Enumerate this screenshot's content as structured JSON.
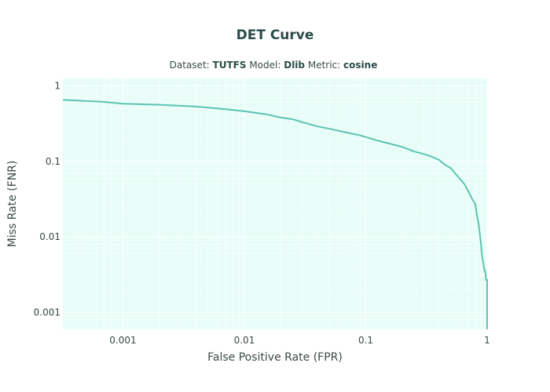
{
  "chart_data": {
    "type": "line",
    "title": "DET Curve",
    "subtitle": {
      "dataset_label": "Dataset:",
      "dataset": "TUTFS",
      "model_label": "Model:",
      "model": "Dlib",
      "metric_label": "Metric:",
      "metric": "cosine"
    },
    "xlabel": "False Positive Rate (FPR)",
    "ylabel": "Miss Rate (FNR)",
    "x_scale": "log",
    "y_scale": "log",
    "xlim": [
      0.00032,
      1
    ],
    "ylim": [
      0.0006,
      1.25
    ],
    "x_ticks": [
      {
        "value": 0.001,
        "label": "0.001"
      },
      {
        "value": 0.01,
        "label": "0.01"
      },
      {
        "value": 0.1,
        "label": "0.1"
      },
      {
        "value": 1,
        "label": "1"
      }
    ],
    "y_ticks": [
      {
        "value": 0.001,
        "label": "0.001"
      },
      {
        "value": 0.01,
        "label": "0.01"
      },
      {
        "value": 0.1,
        "label": "0.1"
      },
      {
        "value": 1,
        "label": "1"
      }
    ],
    "grid": true,
    "colors": {
      "line": "#5cc4b0",
      "plot_background": "#e8fdf8",
      "grid": "#ffffff",
      "title": "#2b4d48"
    },
    "series": [
      {
        "x": [
          0.00032,
          0.0007,
          0.001,
          0.002,
          0.004,
          0.007,
          0.01,
          0.015,
          0.02,
          0.025,
          0.03,
          0.04,
          0.05,
          0.07,
          0.09,
          0.11,
          0.13,
          0.16,
          0.2,
          0.25,
          0.3,
          0.35,
          0.4,
          0.45,
          0.5,
          0.55,
          0.6,
          0.65,
          0.7,
          0.75,
          0.8,
          0.82,
          0.85,
          0.87,
          0.89,
          0.9,
          0.91,
          0.92,
          0.93,
          0.94,
          0.95,
          0.96,
          0.97,
          0.98,
          0.99,
          1.0,
          1.0
        ],
        "y": [
          0.65,
          0.61,
          0.58,
          0.56,
          0.53,
          0.49,
          0.46,
          0.42,
          0.38,
          0.36,
          0.33,
          0.29,
          0.27,
          0.24,
          0.22,
          0.2,
          0.185,
          0.17,
          0.155,
          0.135,
          0.125,
          0.115,
          0.105,
          0.09,
          0.082,
          0.068,
          0.058,
          0.05,
          0.04,
          0.032,
          0.027,
          0.02,
          0.015,
          0.011,
          0.008,
          0.0065,
          0.0055,
          0.005,
          0.0046,
          0.004,
          0.0036,
          0.0036,
          0.0032,
          0.0027,
          0.0027,
          0.0027,
          0.0006
        ]
      }
    ]
  }
}
